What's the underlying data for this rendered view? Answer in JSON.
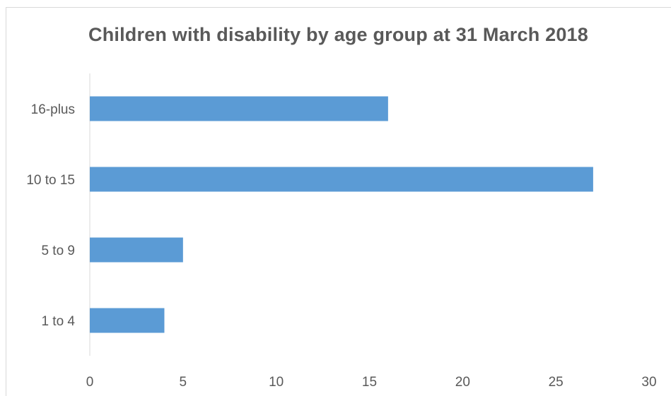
{
  "chart_data": {
    "type": "bar",
    "orientation": "horizontal",
    "title": "Children with disability by age group at 31 March 2018",
    "categories": [
      "1 to 4",
      "5 to 9",
      "10 to 15",
      "16-plus"
    ],
    "values": [
      4,
      5,
      27,
      16
    ],
    "xlim": [
      0,
      30
    ],
    "x_ticks": [
      0,
      5,
      10,
      15,
      20,
      25,
      30
    ],
    "grid": false,
    "legend": "none",
    "bar_color": "#5b9bd5",
    "axis_color": "#d9d9d9",
    "text_color": "#595959"
  }
}
